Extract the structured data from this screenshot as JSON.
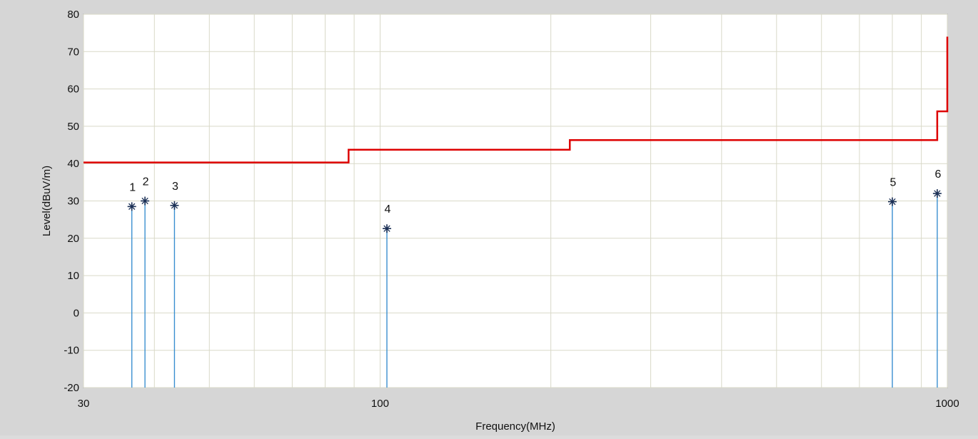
{
  "chart_data": {
    "type": "line",
    "xlabel": "Frequency(MHz)",
    "ylabel": "Level(dBuV/m)",
    "x_scale": "log",
    "xlim": [
      30,
      1000
    ],
    "ylim": [
      -20,
      80
    ],
    "y_ticks": [
      -20,
      -10,
      0,
      10,
      20,
      30,
      40,
      50,
      60,
      70,
      80
    ],
    "x_tick_labels": [
      {
        "value": 30,
        "label": "30"
      },
      {
        "value": 100,
        "label": "100"
      },
      {
        "value": 1000,
        "label": "1000"
      }
    ],
    "x_minor_gridlines": [
      40,
      50,
      60,
      70,
      80,
      90,
      200,
      300,
      400,
      500,
      600,
      700,
      800,
      900
    ],
    "grid": true,
    "limit_line": {
      "color": "#dd0000",
      "points": [
        [
          30,
          40.3
        ],
        [
          88,
          40.3
        ],
        [
          88,
          43.7
        ],
        [
          216,
          43.7
        ],
        [
          216,
          46.3
        ],
        [
          960,
          46.3
        ],
        [
          960,
          54
        ],
        [
          1000,
          54
        ],
        [
          1000,
          74
        ]
      ]
    },
    "markers": {
      "color": "#3a8fd0",
      "star_color": "#1a2f55",
      "points": [
        {
          "label": "1",
          "x": 36.5,
          "y": 28.5
        },
        {
          "label": "2",
          "x": 38.5,
          "y": 30.0
        },
        {
          "label": "3",
          "x": 43.4,
          "y": 28.8
        },
        {
          "label": "4",
          "x": 102.8,
          "y": 22.6
        },
        {
          "label": "5",
          "x": 800,
          "y": 29.8
        },
        {
          "label": "6",
          "x": 960,
          "y": 32.0
        }
      ]
    }
  }
}
